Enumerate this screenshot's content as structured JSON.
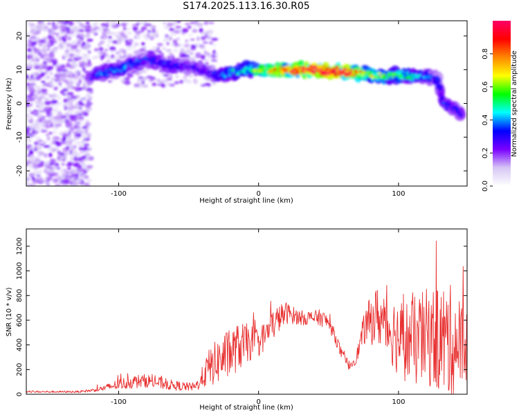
{
  "title": "S174.2025.113.16.30.R05",
  "chart_data": [
    {
      "type": "heatmap",
      "xlabel": "Height of straight line (km)",
      "ylabel": "Frequency (Hz)",
      "xlim": [
        -166,
        149
      ],
      "ylim": [
        -24.5,
        24.5
      ],
      "xticks": [
        -100,
        0,
        100
      ],
      "yticks": [
        -20,
        -10,
        0,
        10,
        20
      ],
      "colorbar": {
        "label": "Normalized spectral amplitude",
        "range": [
          0,
          1
        ],
        "ticks": [
          "0.0",
          "0.2",
          "0.4",
          "0.6",
          "0.8"
        ],
        "colors": [
          "#ffffff",
          "#d6c6f5",
          "#7a00ff",
          "#0000ff",
          "#00ffff",
          "#00ff00",
          "#ffff00",
          "#ff8800",
          "#ff0000",
          "#ff0066"
        ]
      },
      "ridge": {
        "x": [
          -120,
          -110,
          -100,
          -90,
          -80,
          -70,
          -60,
          -50,
          -40,
          -30,
          -20,
          -10,
          0,
          10,
          20,
          30,
          40,
          50,
          60,
          70,
          80,
          90,
          100,
          110,
          120,
          128,
          132,
          138,
          145
        ],
        "frequency": [
          8,
          9,
          10,
          12,
          13,
          12,
          11,
          11,
          10,
          8,
          9,
          10,
          10,
          10,
          10,
          10,
          10,
          9.5,
          9.5,
          9,
          8.5,
          8,
          8.5,
          8,
          8,
          7,
          0,
          -1,
          -3
        ],
        "amplitude": [
          0.3,
          0.35,
          0.35,
          0.35,
          0.3,
          0.3,
          0.3,
          0.25,
          0.25,
          0.3,
          0.4,
          0.45,
          0.55,
          0.7,
          0.8,
          0.9,
          0.95,
          0.95,
          0.9,
          0.8,
          0.6,
          0.55,
          0.5,
          0.45,
          0.35,
          0.3,
          0.3,
          0.3,
          0.3
        ]
      }
    },
    {
      "type": "line",
      "xlabel": "Height of straight line (km)",
      "ylabel": "SNR (10 * v/v)",
      "xlim": [
        -166,
        149
      ],
      "ylim": [
        0,
        1340
      ],
      "xticks": [
        -100,
        0,
        100
      ],
      "yticks": [
        0,
        200,
        400,
        600,
        800,
        1000,
        1200
      ],
      "series": [
        {
          "color": "#e83030",
          "x": [
            -166,
            -150,
            -130,
            -120,
            -110,
            -100,
            -90,
            -80,
            -70,
            -60,
            -50,
            -45,
            -40,
            -35,
            -30,
            -25,
            -20,
            -15,
            -10,
            -5,
            0,
            5,
            10,
            15,
            20,
            25,
            30,
            35,
            40,
            45,
            50,
            55,
            60,
            65,
            70,
            75,
            80,
            85,
            90,
            95,
            100,
            105,
            110,
            115,
            120,
            125,
            130,
            135,
            140,
            145,
            149
          ],
          "baseline": [
            20,
            20,
            20,
            30,
            50,
            80,
            100,
            110,
            90,
            70,
            60,
            60,
            140,
            220,
            260,
            300,
            330,
            380,
            400,
            420,
            420,
            480,
            560,
            620,
            660,
            640,
            620,
            620,
            620,
            620,
            580,
            460,
            300,
            230,
            300,
            520,
            600,
            640,
            560,
            520,
            460,
            440,
            420,
            440,
            460,
            460,
            440,
            430,
            420,
            400,
            380
          ],
          "amplitude": [
            8,
            8,
            8,
            12,
            25,
            45,
            55,
            55,
            50,
            40,
            35,
            35,
            90,
            160,
            180,
            200,
            200,
            190,
            180,
            140,
            120,
            120,
            130,
            110,
            90,
            70,
            60,
            60,
            60,
            70,
            60,
            50,
            50,
            40,
            50,
            120,
            200,
            240,
            250,
            280,
            320,
            340,
            360,
            380,
            400,
            420,
            460,
            480,
            440,
            380,
            320
          ]
        }
      ]
    }
  ]
}
